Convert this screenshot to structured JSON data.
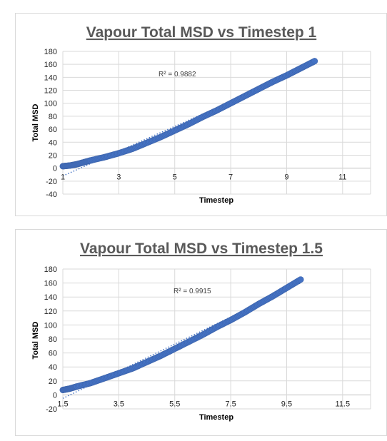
{
  "chart_data": [
    {
      "type": "scatter",
      "title": "Vapour Total MSD vs Timestep 1",
      "xlabel": "Timestep",
      "ylabel": "Total MSD",
      "xlim": [
        1,
        12
      ],
      "ylim": [
        -40,
        180
      ],
      "x_ticks": [
        1,
        3,
        5,
        7,
        9,
        11
      ],
      "x_tick_labels": [
        "1",
        "3",
        "5",
        "7",
        "9",
        "11"
      ],
      "y_ticks": [
        -40,
        -20,
        0,
        20,
        40,
        60,
        80,
        100,
        120,
        140,
        160,
        180
      ],
      "y_tick_labels": [
        "-40",
        "-20",
        "0",
        "20",
        "40",
        "60",
        "80",
        "100",
        "120",
        "140",
        "160",
        "180"
      ],
      "grid": true,
      "legend": "none",
      "series_color": "#4472c4",
      "trendline": {
        "type": "linear",
        "style": "dotted",
        "start": [
          1,
          -12
        ],
        "end": [
          10,
          160
        ]
      },
      "r_squared_label": "R² = 0.9882",
      "points": [
        [
          1.0,
          3
        ],
        [
          1.25,
          4
        ],
        [
          1.5,
          6
        ],
        [
          1.75,
          9
        ],
        [
          2.0,
          12
        ],
        [
          2.5,
          17
        ],
        [
          3.0,
          23
        ],
        [
          3.5,
          30
        ],
        [
          4.0,
          39
        ],
        [
          4.5,
          48
        ],
        [
          5.0,
          58
        ],
        [
          5.5,
          68
        ],
        [
          6.0,
          79
        ],
        [
          6.5,
          89
        ],
        [
          7.0,
          100
        ],
        [
          7.5,
          111
        ],
        [
          8.0,
          122
        ],
        [
          8.5,
          133
        ],
        [
          9.0,
          143
        ],
        [
          9.5,
          154
        ],
        [
          10.0,
          165
        ]
      ]
    },
    {
      "type": "scatter",
      "title": "Vapour Total MSD vs Timestep 1.5",
      "xlabel": "Timestep",
      "ylabel": "Total MSD",
      "xlim": [
        1.5,
        12.5
      ],
      "ylim": [
        -20,
        180
      ],
      "x_ticks": [
        1.5,
        3.5,
        5.5,
        7.5,
        9.5,
        11.5
      ],
      "x_tick_labels": [
        "1.5",
        "3.5",
        "5.5",
        "7.5",
        "9.5",
        "11.5"
      ],
      "y_ticks": [
        -20,
        0,
        20,
        40,
        60,
        80,
        100,
        120,
        140,
        160,
        180
      ],
      "y_tick_labels": [
        "-20",
        "0",
        "20",
        "40",
        "60",
        "80",
        "100",
        "120",
        "140",
        "160",
        "180"
      ],
      "grid": true,
      "legend": "none",
      "series_color": "#4472c4",
      "trendline": {
        "type": "linear",
        "style": "dotted",
        "start": [
          1.5,
          -5
        ],
        "end": [
          10,
          160
        ]
      },
      "r_squared_label": "R² = 0.9915",
      "points": [
        [
          1.5,
          7
        ],
        [
          1.75,
          9
        ],
        [
          2.0,
          12
        ],
        [
          2.5,
          17
        ],
        [
          3.0,
          24
        ],
        [
          3.5,
          31
        ],
        [
          4.0,
          38
        ],
        [
          4.5,
          47
        ],
        [
          5.0,
          56
        ],
        [
          5.5,
          66
        ],
        [
          6.0,
          76
        ],
        [
          6.5,
          86
        ],
        [
          7.0,
          97
        ],
        [
          7.5,
          107
        ],
        [
          8.0,
          118
        ],
        [
          8.5,
          130
        ],
        [
          9.0,
          141
        ],
        [
          9.5,
          153
        ],
        [
          10.0,
          165
        ]
      ]
    }
  ]
}
